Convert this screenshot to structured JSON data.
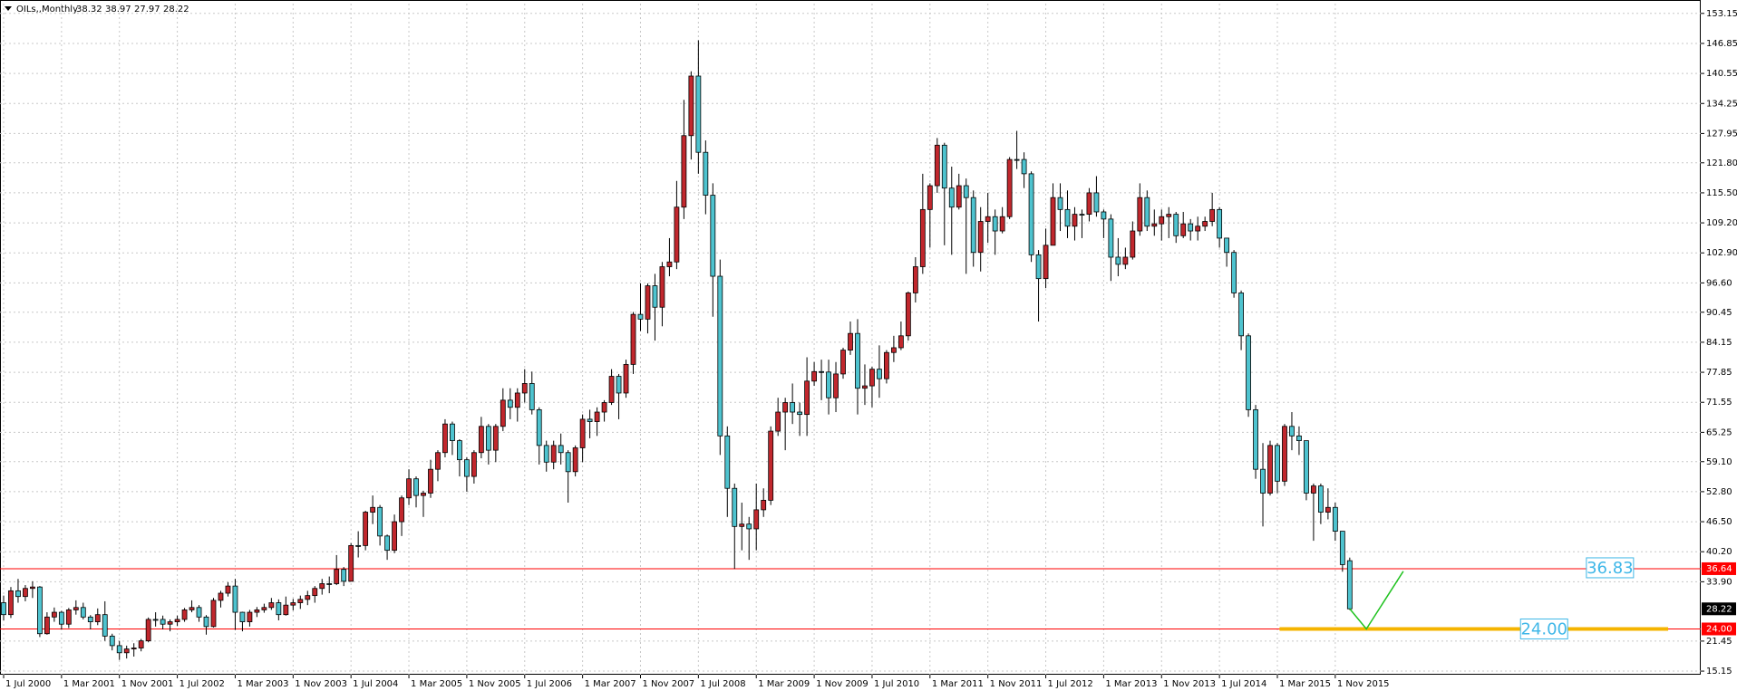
{
  "chart_data": {
    "type": "candlestick",
    "title": "OILs,,Monthly",
    "up_color": "#c1272d",
    "down_color": "#4ec3cf",
    "grid": true,
    "xlim": [
      -0.5,
      234.5
    ],
    "ylim": [
      14.4,
      155.2
    ],
    "xticks": [
      {
        "value": 0,
        "label": "1 Jul 2000"
      },
      {
        "value": 8,
        "label": "1 Mar 2001"
      },
      {
        "value": 16,
        "label": "1 Nov 2001"
      },
      {
        "value": 24,
        "label": "1 Jul 2002"
      },
      {
        "value": 32,
        "label": "1 Mar 2003"
      },
      {
        "value": 40,
        "label": "1 Nov 2003"
      },
      {
        "value": 48,
        "label": "1 Jul 2004"
      },
      {
        "value": 56,
        "label": "1 Mar 2005"
      },
      {
        "value": 64,
        "label": "1 Nov 2005"
      },
      {
        "value": 72,
        "label": "1 Jul 2006"
      },
      {
        "value": 80,
        "label": "1 Mar 2007"
      },
      {
        "value": 88,
        "label": "1 Nov 2007"
      },
      {
        "value": 96,
        "label": "1 Jul 2008"
      },
      {
        "value": 104,
        "label": "1 Mar 2009"
      },
      {
        "value": 112,
        "label": "1 Nov 2009"
      },
      {
        "value": 120,
        "label": "1 Jul 2010"
      },
      {
        "value": 128,
        "label": "1 Mar 2011"
      },
      {
        "value": 136,
        "label": "1 Nov 2011"
      },
      {
        "value": 144,
        "label": "1 Jul 2012"
      },
      {
        "value": 152,
        "label": "1 Mar 2013"
      },
      {
        "value": 160,
        "label": "1 Nov 2013"
      },
      {
        "value": 168,
        "label": "1 Jul 2014"
      },
      {
        "value": 176,
        "label": "1 Mar 2015"
      },
      {
        "value": 184,
        "label": "1 Nov 2015"
      }
    ],
    "yticks": [
      15.15,
      21.45,
      {
        "value": 33.9,
        "label": "33.90"
      },
      {
        "value": 40.2,
        "label": "40.20"
      },
      {
        "value": 46.5,
        "label": "46.50"
      },
      {
        "value": 52.8,
        "label": "52.80"
      },
      {
        "value": 59.1,
        "label": "59.10"
      },
      65.25,
      71.55,
      77.85,
      84.15,
      90.45,
      {
        "value": 96.6,
        "label": "96.60"
      },
      {
        "value": 102.9,
        "label": "102.90"
      },
      {
        "value": 109.2,
        "label": "109.20"
      },
      {
        "value": 115.5,
        "label": "115.50"
      },
      {
        "value": 121.8,
        "label": "121.80"
      },
      127.95,
      134.25,
      140.55,
      146.85,
      153.15
    ],
    "open": [
      29.5,
      27,
      32,
      30.8,
      32.5,
      32.8,
      23,
      26.5,
      27.5,
      25,
      28,
      28.5,
      26.5,
      25.5,
      27,
      22.5,
      20.5,
      19,
      19.8,
      20,
      21.5,
      26,
      26,
      25,
      25.5,
      26,
      28,
      28.5,
      26.5,
      24.5,
      30,
      31.5,
      33,
      27.5,
      25.5,
      27.5,
      28,
      28.5,
      29.5,
      27,
      29,
      29.5,
      30.2,
      31,
      32.5,
      33.5,
      33.5,
      36.5,
      34,
      41.5,
      41.5,
      48.5,
      49.5,
      43.5,
      40.5,
      46.5,
      51.5,
      55.5,
      52,
      52.5,
      57.5,
      61,
      67,
      63.5,
      59.5,
      56,
      61,
      66.5,
      61.5,
      66.5,
      72,
      70.5,
      73.5,
      75.5,
      70,
      62.5,
      59,
      62.5,
      61,
      57,
      62,
      68,
      67.5,
      69.5,
      71.5,
      77,
      73.5,
      79.5,
      90,
      89,
      96,
      91.5,
      100,
      101,
      112.5,
      127.5,
      140,
      124,
      115,
      98,
      64.5,
      53.5,
      45.5,
      46,
      45,
      49,
      51,
      65.5,
      69.5,
      71.5,
      69.5,
      69,
      76,
      78,
      77.9,
      72.5,
      77.5,
      82.5,
      86,
      74.5,
      75,
      78.5,
      76.5,
      82,
      83,
      85.5,
      94.5,
      100,
      112,
      117,
      125.5,
      116.5,
      112.5,
      117,
      114.5,
      103,
      109.5,
      110.5,
      107.5,
      110.5,
      122.5,
      122.5,
      119.5,
      102.5,
      97.5,
      104.5,
      114.5,
      112,
      108.5,
      111,
      111,
      115.5,
      111.5,
      110,
      102,
      100.5,
      102,
      107.5,
      114.5,
      108.5,
      109,
      110.5,
      111,
      106.5,
      109,
      107.5,
      108.5,
      109.5,
      112,
      106,
      103,
      94.5,
      85.5,
      70,
      57.5,
      52.5,
      62.5,
      55,
      66.5,
      64.5,
      63.5,
      52.5,
      54,
      48.5,
      49.5,
      44.5,
      38.32
    ],
    "high": [
      31,
      32.8,
      34.5,
      33.2,
      34,
      33,
      27.5,
      28.5,
      27.8,
      28.4,
      30,
      29.5,
      26.9,
      28.3,
      29.8,
      23,
      21.5,
      20.5,
      21,
      21.9,
      26.4,
      27.5,
      26.8,
      26,
      26.8,
      28.4,
      30,
      29,
      26.9,
      30.5,
      32,
      33.8,
      34.5,
      27.6,
      28,
      28.6,
      29.3,
      30.5,
      30.2,
      30.8,
      30.3,
      31,
      32,
      33,
      34.5,
      35,
      39.5,
      37,
      42,
      44.5,
      48.8,
      52,
      50,
      43.8,
      48,
      52,
      57.5,
      56,
      53,
      59.5,
      61.5,
      68,
      67.5,
      63.8,
      60,
      61.5,
      68.5,
      67,
      67,
      74.5,
      74.5,
      74.5,
      78.5,
      78,
      70.5,
      63.5,
      63.5,
      65,
      61.5,
      62.5,
      69,
      70,
      70.5,
      72,
      78.5,
      77.5,
      80.5,
      90.5,
      96.5,
      96.5,
      98.5,
      101,
      106,
      118,
      135,
      141,
      147.5,
      126.5,
      117.5,
      101.5,
      66.5,
      54.5,
      50.5,
      47.5,
      54.5,
      53.5,
      66.5,
      72.5,
      72.5,
      75.5,
      71.5,
      81,
      80,
      80.5,
      80.5,
      80,
      83,
      88.5,
      89,
      79.5,
      79,
      83.5,
      82.5,
      85.5,
      88.5,
      94.8,
      102,
      119.5,
      117.5,
      127,
      126,
      121,
      119.5,
      118.5,
      116,
      112.5,
      115.5,
      112,
      112.5,
      123,
      128.5,
      124,
      120,
      103.5,
      108,
      117.5,
      117.5,
      116,
      112.5,
      112,
      116.5,
      119,
      112,
      111,
      106,
      104,
      109.5,
      117.5,
      116,
      112,
      112,
      112.5,
      111.5,
      111.5,
      110,
      110.5,
      110.5,
      115.5,
      112.5,
      106,
      103.5,
      95,
      86,
      71,
      63,
      63.5,
      63,
      67,
      69.5,
      66.5,
      63.5,
      54.5,
      54.5,
      53.5,
      50.5,
      44.5,
      38.97
    ],
    "low": [
      25.8,
      26.3,
      29.5,
      29.8,
      30.5,
      22.3,
      22.8,
      25.5,
      23.9,
      24.2,
      27,
      26,
      23.9,
      24.8,
      21.5,
      19.5,
      17.5,
      17.8,
      18.2,
      19.3,
      21.2,
      24.5,
      23.9,
      23.5,
      24.6,
      25.5,
      27.5,
      25.5,
      22.8,
      24.3,
      28.5,
      30.8,
      23.8,
      23.5,
      24.5,
      26.5,
      27.4,
      28,
      25.8,
      26.8,
      27.9,
      28.2,
      29,
      29.5,
      31.2,
      31.5,
      33.2,
      33,
      34,
      39,
      40.5,
      46,
      41.5,
      38.5,
      39.9,
      43.5,
      50,
      49.5,
      47.5,
      51.5,
      55,
      60,
      60.5,
      56,
      52.8,
      54.5,
      59.8,
      58.5,
      59,
      65.5,
      68,
      67.5,
      71.5,
      69,
      58.5,
      57,
      57.5,
      58.5,
      50.5,
      56,
      59,
      64,
      64.5,
      67.5,
      71,
      68,
      72.5,
      77.5,
      86.5,
      86,
      84.5,
      87.5,
      98,
      99.5,
      110,
      122.5,
      119.5,
      111,
      89.5,
      60.5,
      47.5,
      36.6,
      40.5,
      38.5,
      40.5,
      47.5,
      50,
      64.5,
      61.5,
      67,
      64.5,
      64.5,
      75,
      72,
      69,
      69.5,
      76.5,
      81.5,
      69,
      71,
      70.5,
      72.5,
      75.5,
      80,
      82.5,
      84.5,
      92.5,
      98.5,
      104,
      115.5,
      104.5,
      102.5,
      112,
      98.5,
      100,
      99,
      105,
      102.5,
      107,
      110,
      120.5,
      116.5,
      101,
      88.5,
      95.5,
      104.5,
      107.5,
      106,
      105.5,
      106,
      109.5,
      110.5,
      106,
      97,
      98,
      99.5,
      101.5,
      106.5,
      107.5,
      106.5,
      105.5,
      106,
      105,
      106,
      105.5,
      105.5,
      107.5,
      108.5,
      104,
      100,
      93.5,
      82.5,
      68.5,
      55.5,
      45.5,
      52,
      52.5,
      54,
      61.5,
      60.5,
      51,
      42.5,
      46,
      47,
      42.5,
      36,
      27.97
    ],
    "close": [
      27,
      32,
      30.8,
      32.5,
      32.8,
      23,
      26.5,
      27.5,
      25,
      28,
      28.5,
      26.5,
      25.5,
      27,
      22.5,
      20.5,
      19,
      19.8,
      20,
      21.5,
      26,
      26,
      25,
      25.5,
      26,
      28,
      28.5,
      26.5,
      24.5,
      30,
      31.5,
      33,
      27.5,
      25.5,
      27.5,
      28,
      28.5,
      29.5,
      27,
      29,
      29.5,
      30.2,
      31,
      32.5,
      33.5,
      33.5,
      36.5,
      34,
      41.5,
      41.5,
      48.5,
      49.5,
      43.5,
      40.5,
      46.5,
      51.5,
      55.5,
      52,
      52.5,
      57.5,
      61,
      67,
      63.5,
      59.5,
      56,
      61,
      66.5,
      61.5,
      66.5,
      72,
      70.5,
      73.5,
      75.5,
      70,
      62.5,
      59,
      62.5,
      61,
      57,
      62,
      68,
      67.5,
      69.5,
      71.5,
      77,
      73.5,
      79.5,
      90,
      89,
      96,
      91.5,
      100,
      101,
      112.5,
      127.5,
      140,
      124,
      115,
      98,
      64.5,
      53.5,
      45.5,
      46,
      45,
      49,
      51,
      65.5,
      69.5,
      71.5,
      69.5,
      69,
      76,
      78,
      77.9,
      72.5,
      77.5,
      82.5,
      86,
      74.5,
      75,
      78.5,
      76.5,
      82,
      83,
      85.5,
      94.5,
      100,
      112,
      117,
      125.5,
      116.5,
      112.5,
      117,
      114.5,
      103,
      109.5,
      110.5,
      107.5,
      110.5,
      122.5,
      122.5,
      119.5,
      102.5,
      97.5,
      104.5,
      114.5,
      112,
      108.5,
      111,
      111,
      115.5,
      111.5,
      110,
      102,
      100.5,
      102,
      107.5,
      114.5,
      108.5,
      109,
      110.5,
      111,
      106.5,
      109,
      107.5,
      108.5,
      109.5,
      112,
      106,
      103,
      94.5,
      85.5,
      70,
      57.5,
      52.5,
      62.5,
      55,
      66.5,
      64.5,
      63.5,
      52.5,
      54,
      48.5,
      49.5,
      44.5,
      37.5,
      28.22
    ],
    "hlines": [
      {
        "value": 36.64,
        "label": "36.64",
        "color": "#ff0000"
      },
      {
        "value": 24,
        "label": "24.00",
        "color": "#ff0000"
      }
    ],
    "level": {
      "value": 24,
      "x": [
        176.3,
        230
      ],
      "color": "#f5b400"
    },
    "zigzag": {
      "x": [
        186,
        188.3,
        193.4
      ],
      "y": [
        28.22,
        24,
        36.1
      ],
      "color": "#1fc21f"
    },
    "annotations": [
      {
        "value": 36.83,
        "x": 218.7,
        "label": "36.83"
      },
      {
        "value": 24,
        "x": 209.6,
        "label": "24.00"
      }
    ]
  }
}
